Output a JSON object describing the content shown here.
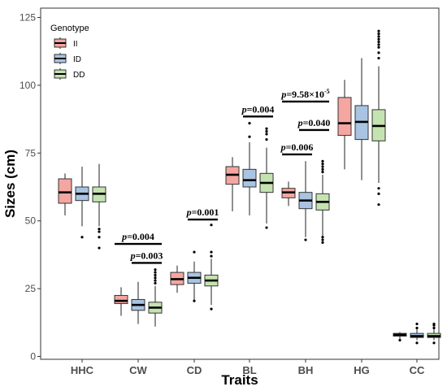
{
  "chart_data": {
    "type": "boxplot",
    "xlabel": "Traits",
    "ylabel": "Sizes (cm)",
    "ylim": [
      0,
      125
    ],
    "yticks": [
      0,
      25,
      50,
      75,
      100,
      125
    ],
    "categories": [
      "HHC",
      "CW",
      "CD",
      "BL",
      "BH",
      "HG",
      "CC"
    ],
    "legend": {
      "title": "Genotype",
      "position": "top-left",
      "entries": [
        {
          "label": "II",
          "color": "#f4a6a0"
        },
        {
          "label": "ID",
          "color": "#a9c4e2"
        },
        {
          "label": "DD",
          "color": "#c4e3b1"
        }
      ]
    },
    "series": [
      {
        "name": "II",
        "color": "#f4a6a0",
        "boxes": [
          {
            "min": 52,
            "q1": 56.5,
            "median": 60.5,
            "q3": 65.5,
            "max": 67.5,
            "outliers": []
          },
          {
            "min": 15,
            "q1": 19.5,
            "median": 20.5,
            "q3": 22.5,
            "max": 25.5,
            "outliers": []
          },
          {
            "min": 23.5,
            "q1": 26.5,
            "median": 28.5,
            "q3": 31,
            "max": 33.5,
            "outliers": []
          },
          {
            "min": 53.5,
            "q1": 63.5,
            "median": 67,
            "q3": 70,
            "max": 73.5,
            "outliers": []
          },
          {
            "min": 55.5,
            "q1": 58.5,
            "median": 60.5,
            "q3": 62,
            "max": 64.5,
            "outliers": []
          },
          {
            "min": 69,
            "q1": 81.5,
            "median": 86,
            "q3": 95.5,
            "max": 102,
            "outliers": []
          },
          {
            "min": 6.5,
            "q1": 7.5,
            "median": 8,
            "q3": 8.5,
            "max": 9,
            "outliers": [
              6
            ]
          }
        ]
      },
      {
        "name": "ID",
        "color": "#a9c4e2",
        "boxes": [
          {
            "min": 48,
            "q1": 57.5,
            "median": 60,
            "q3": 62.5,
            "max": 70,
            "outliers": [
              44
            ]
          },
          {
            "min": 12,
            "q1": 17,
            "median": 19,
            "q3": 21,
            "max": 27.5,
            "outliers": []
          },
          {
            "min": 21,
            "q1": 27,
            "median": 29,
            "q3": 31,
            "max": 35,
            "outliers": [
              20.5,
              38.5
            ]
          },
          {
            "min": 52,
            "q1": 62.5,
            "median": 65,
            "q3": 69,
            "max": 79,
            "outliers": [
              81,
              86
            ]
          },
          {
            "min": 44,
            "q1": 54.5,
            "median": 57.5,
            "q3": 60.5,
            "max": 72,
            "outliers": [
              43
            ]
          },
          {
            "min": 65,
            "q1": 80,
            "median": 86.5,
            "q3": 92.5,
            "max": 110,
            "outliers": []
          },
          {
            "min": 6,
            "q1": 7,
            "median": 7.5,
            "q3": 8.5,
            "max": 10,
            "outliers": [
              5,
              10.5,
              12
            ]
          }
        ]
      },
      {
        "name": "DD",
        "color": "#c4e3b1",
        "boxes": [
          {
            "min": 48,
            "q1": 57,
            "median": 60,
            "q3": 62.5,
            "max": 71,
            "outliers": [
              44,
              46,
              47,
              40
            ]
          },
          {
            "min": 11,
            "q1": 16,
            "median": 18,
            "q3": 20,
            "max": 26,
            "outliers": [
              27,
              28,
              29,
              30,
              31,
              32
            ]
          },
          {
            "min": 19,
            "q1": 26,
            "median": 28,
            "q3": 30,
            "max": 36,
            "outliers": [
              17.5,
              37,
              38.5,
              48.5
            ]
          },
          {
            "min": 49,
            "q1": 60.5,
            "median": 64,
            "q3": 67.5,
            "max": 77,
            "outliers": [
              47.5,
              80,
              82,
              83,
              84
            ]
          },
          {
            "min": 44,
            "q1": 54,
            "median": 57,
            "q3": 60,
            "max": 67,
            "outliers": [
              42,
              43,
              44,
              68,
              69,
              70,
              71,
              72
            ]
          },
          {
            "min": 64,
            "q1": 79.5,
            "median": 85,
            "q3": 91,
            "max": 107,
            "outliers": [
              56,
              60,
              62,
              110,
              112,
              114,
              115,
              116,
              117,
              118,
              119,
              120
            ]
          },
          {
            "min": 6,
            "q1": 7,
            "median": 7.5,
            "q3": 8.5,
            "max": 10,
            "outliers": [
              5,
              10.5,
              11.5,
              12
            ]
          }
        ]
      }
    ],
    "annotations": [
      {
        "text": "p=0.004",
        "from": [
          1,
          0
        ],
        "to": [
          1,
          2
        ],
        "y": 41.5
      },
      {
        "text": "p=0.003",
        "from": [
          1,
          1
        ],
        "to": [
          1,
          2
        ],
        "y": 34.5
      },
      {
        "text": "p=0.001",
        "from": [
          2,
          1
        ],
        "to": [
          2,
          2
        ],
        "y": 50.5
      },
      {
        "text": "p=0.004",
        "from": [
          3,
          1
        ],
        "to": [
          3,
          2
        ],
        "y": 88.5
      },
      {
        "text": "p=0.006",
        "from": [
          4,
          0
        ],
        "to": [
          4,
          1
        ],
        "y": 74.5
      },
      {
        "text": "p=0.040",
        "from": [
          4,
          1
        ],
        "to": [
          4,
          2
        ],
        "y": 83.5
      },
      {
        "text": "p=9.58×10",
        "sup": "-5",
        "from": [
          4,
          0
        ],
        "to": [
          4,
          2
        ],
        "y": 94
      }
    ],
    "grid": false
  }
}
